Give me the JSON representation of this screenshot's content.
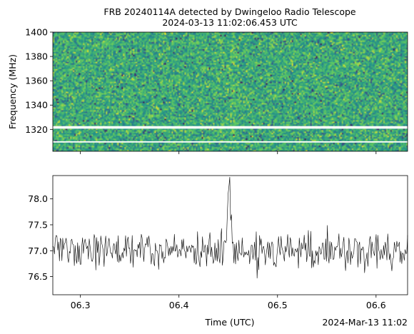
{
  "chart_data": [
    {
      "type": "heatmap",
      "title_line1": "FRB 20240114A detected by Dwingeloo Radio Telescope",
      "title_line2": "2024-03-13 11:02:06.453 UTC",
      "xlabel": "",
      "ylabel": "Frequency (MHz)",
      "ylim": [
        1302,
        1400
      ],
      "yticks": [
        1320,
        1340,
        1360,
        1380,
        1400
      ],
      "xlim": [
        6.272,
        6.632
      ],
      "xticks": [
        6.3,
        6.4,
        6.5,
        6.6
      ],
      "colormap": [
        "#440154",
        "#3b528b",
        "#21918c",
        "#5ec962",
        "#fde725"
      ],
      "masked_bands_mhz": [
        [
          1320.6,
          1322.7
        ],
        [
          1309.2,
          1310.3
        ]
      ],
      "masked_color": "#ffffff",
      "pulse_time_s": 6.453
    },
    {
      "type": "line",
      "xlabel": "Time (UTC)",
      "xlim": [
        6.272,
        6.632
      ],
      "xtick_values": [
        6.3,
        6.4,
        6.5,
        6.6
      ],
      "xtick_labels": [
        "06.3",
        "06.4",
        "06.5",
        "06.6"
      ],
      "ylim": [
        76.15,
        78.45
      ],
      "yticks": [
        76.5,
        77.0,
        77.5,
        78.0
      ],
      "ytick_labels": [
        "76.5",
        "77.0",
        "77.5",
        "78.0"
      ],
      "offset_text": "2024-Mar-13 11:02",
      "baseline": 77.0,
      "noise_sd": 0.24,
      "n_samples": 430,
      "peak": {
        "x": 6.451,
        "y": 78.38
      },
      "line_color": "#000000"
    }
  ]
}
